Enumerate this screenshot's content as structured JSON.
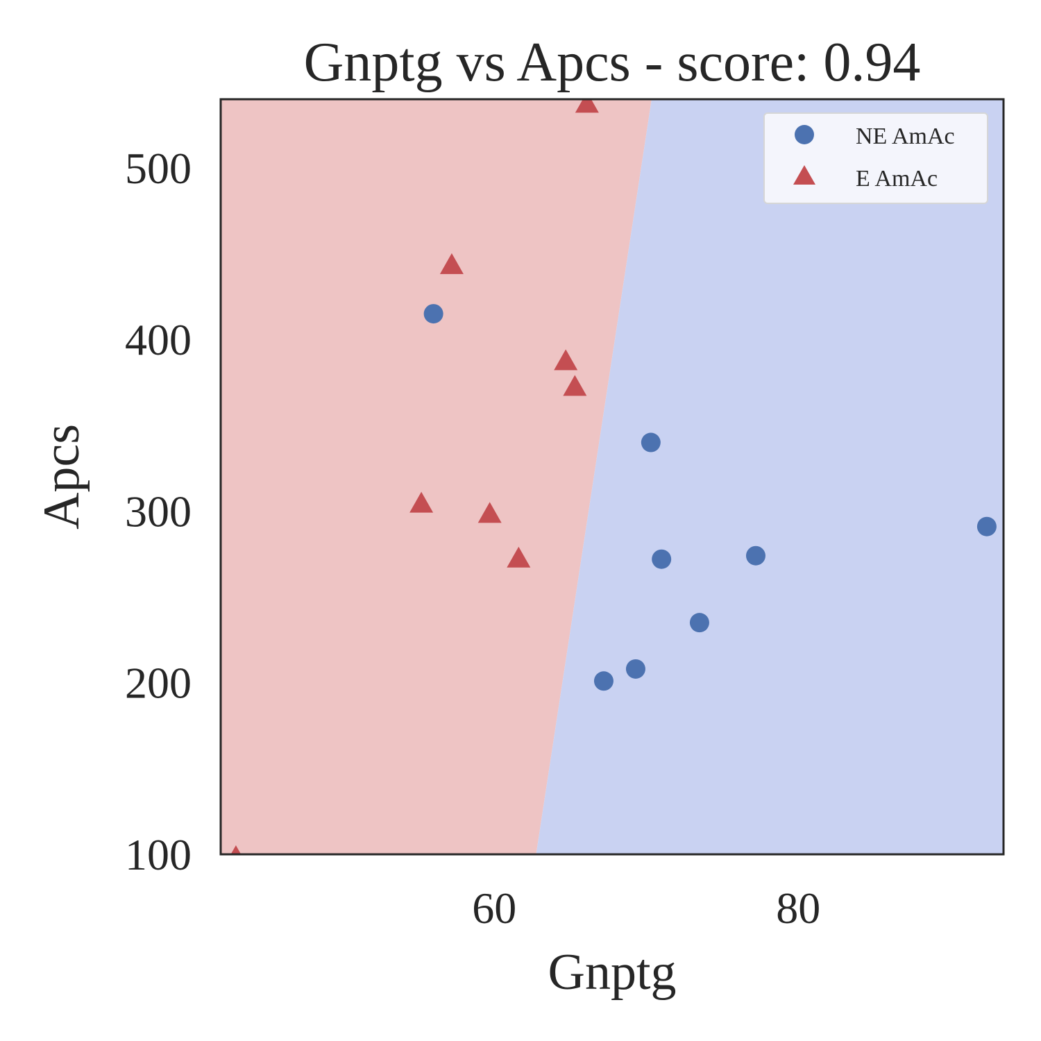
{
  "chart_data": {
    "type": "scatter",
    "title": "Gnptg vs Apcs - score: 0.94",
    "xlabel": "Gnptg",
    "ylabel": "Apcs",
    "xlim": [
      42,
      93.5
    ],
    "ylim": [
      100,
      540
    ],
    "xticks": [
      60,
      80
    ],
    "yticks": [
      100,
      200,
      300,
      400,
      500
    ],
    "grid": false,
    "legend_position": "top-right",
    "decision_boundary": {
      "line": [
        [
          62.75,
          100
        ],
        [
          70.35,
          540
        ]
      ],
      "left_class": "E AmAc",
      "right_class": "NE AmAc",
      "left_color": "#eec4c4",
      "right_color": "#c9d2f2"
    },
    "series": [
      {
        "name": "NE AmAc",
        "marker": "circle",
        "color": "#4c72b0",
        "points": [
          [
            56.0,
            415
          ],
          [
            70.3,
            340
          ],
          [
            71.0,
            272
          ],
          [
            77.2,
            274
          ],
          [
            73.5,
            235
          ],
          [
            69.3,
            208
          ],
          [
            67.2,
            201
          ],
          [
            92.4,
            291
          ]
        ]
      },
      {
        "name": "E AmAc",
        "marker": "triangle",
        "color": "#c44e52",
        "points": [
          [
            57.2,
            443
          ],
          [
            64.7,
            387
          ],
          [
            65.3,
            372
          ],
          [
            55.2,
            304
          ],
          [
            59.7,
            298
          ],
          [
            61.6,
            272
          ],
          [
            66.1,
            537
          ],
          [
            43.0,
            98
          ]
        ]
      }
    ]
  }
}
